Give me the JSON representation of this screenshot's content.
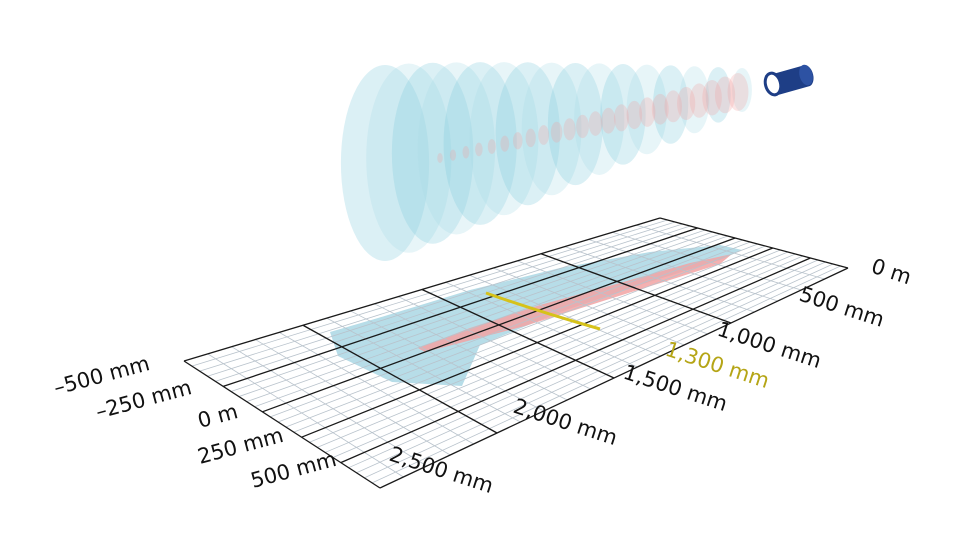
{
  "colors": {
    "background": "#ffffff",
    "outer_field": "#7fc9da",
    "inner_field": "#f0a1a1",
    "fine_grid": "#b9c3cc",
    "major_grid": "#1a1a1a",
    "highlight": "#d6c21a",
    "highlight_text": "#b5a516",
    "sensor": "#1e3e86"
  },
  "icons": {
    "sensor": "sensor-cylinder-icon"
  },
  "axes": {
    "lateral_labels": [
      "–500 mm",
      "–250 mm",
      "0 m",
      "250 mm",
      "500 mm"
    ],
    "distance_labels": [
      "0 m",
      "500 mm",
      "1,000 mm",
      "1,500 mm",
      "2,000 mm",
      "2,500 mm"
    ],
    "highlight_label": "1,300 mm"
  }
}
